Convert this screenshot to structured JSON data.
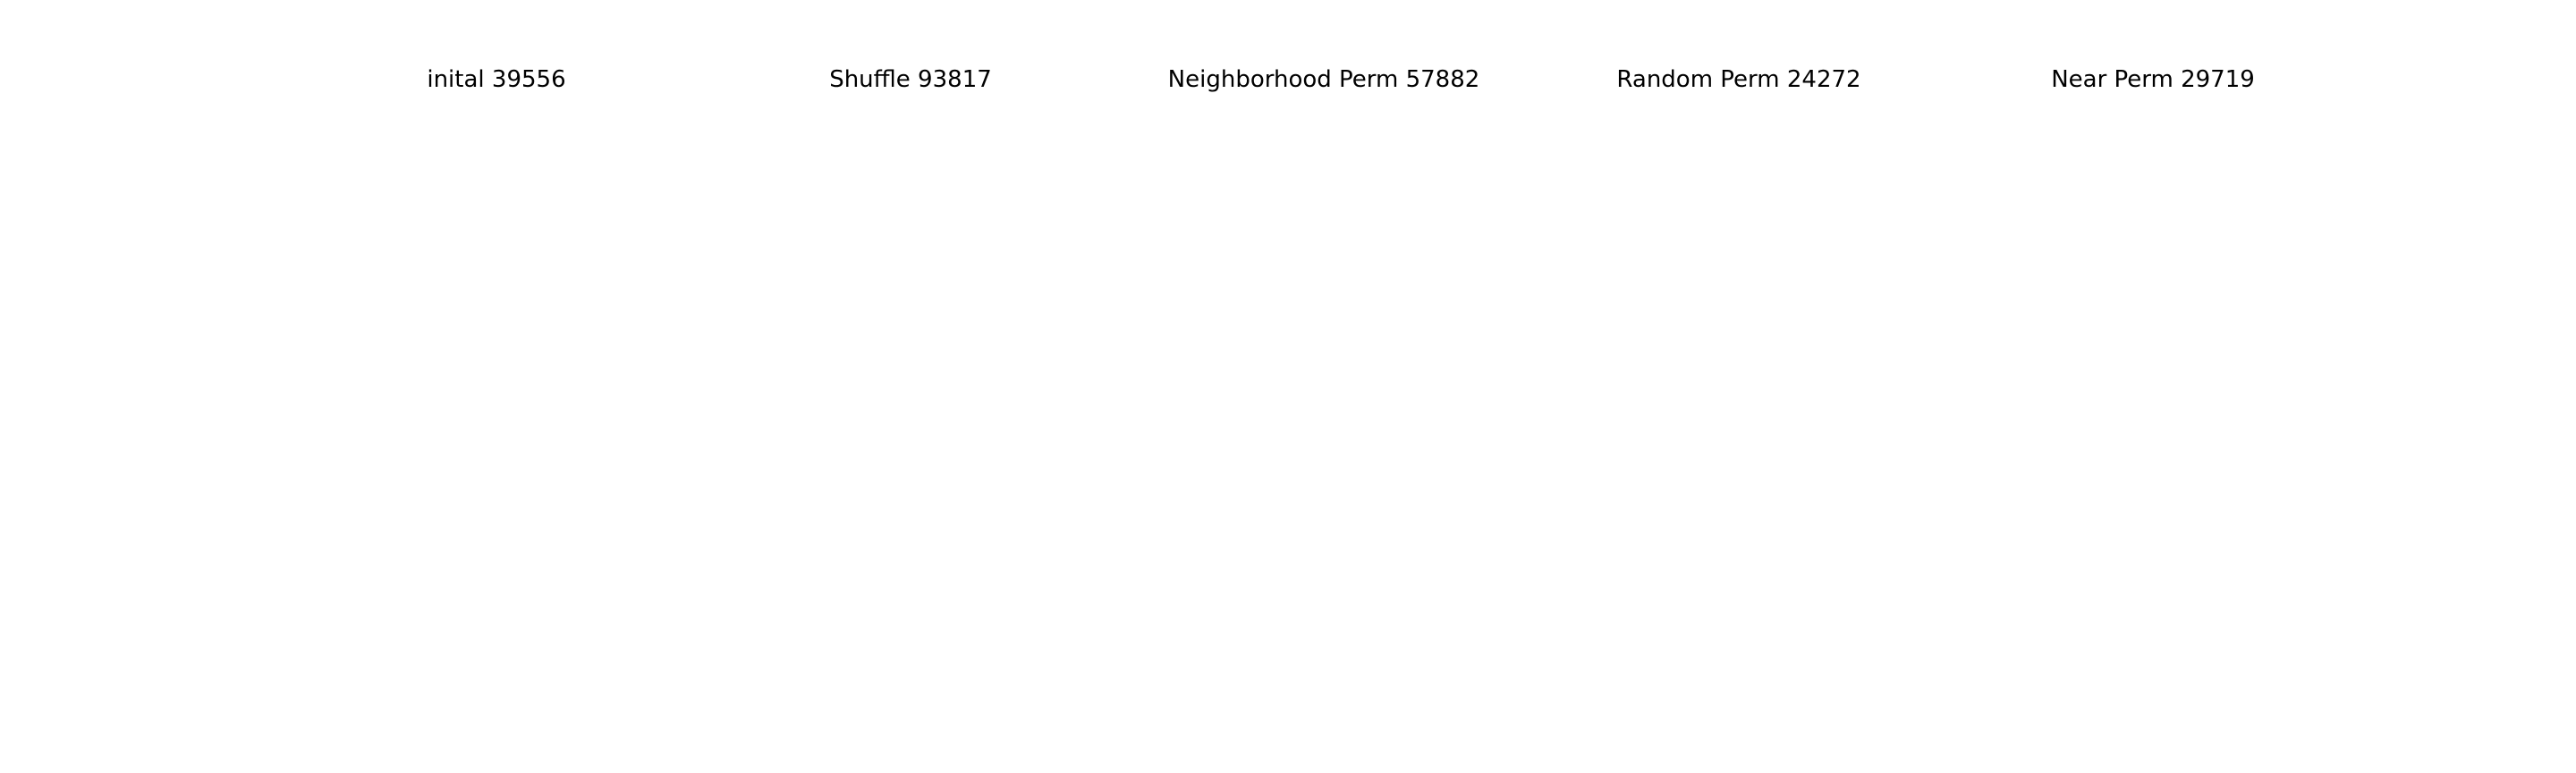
{
  "chart_data": [
    {
      "type": "line",
      "title": "inital 39556",
      "xlim": [
        0,
        1
      ],
      "ylim": [
        0,
        1
      ],
      "grid": false,
      "axes_visible": false,
      "x": [],
      "y": []
    },
    {
      "type": "line",
      "title": "Shuffle 93817",
      "xlim": [
        0,
        1
      ],
      "ylim": [
        0,
        1
      ],
      "grid": false,
      "axes_visible": false,
      "x": [],
      "y": []
    },
    {
      "type": "line",
      "title": "Neighborhood Perm 57882",
      "xlim": [
        0,
        1
      ],
      "ylim": [
        0,
        1
      ],
      "grid": false,
      "axes_visible": false,
      "x": [],
      "y": []
    },
    {
      "type": "line",
      "title": "Random Perm 24272",
      "xlim": [
        0,
        1
      ],
      "ylim": [
        0,
        1
      ],
      "grid": false,
      "axes_visible": false,
      "x": [],
      "y": []
    },
    {
      "type": "line",
      "title": "Near Perm 29719",
      "xlim": [
        0,
        1
      ],
      "ylim": [
        0,
        1
      ],
      "grid": false,
      "axes_visible": false,
      "x": [],
      "y": []
    }
  ],
  "colors": {
    "route": "#ff0000",
    "point": "#4c72b0"
  }
}
